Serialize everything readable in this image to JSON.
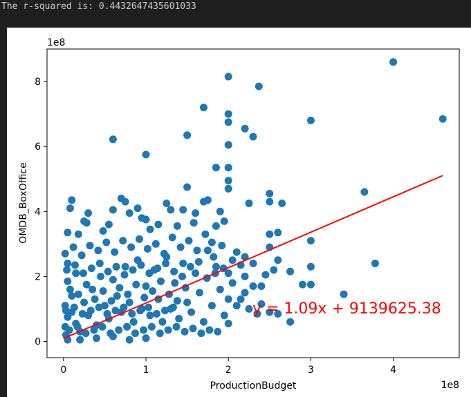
{
  "console": {
    "output_text": "The r-squared is: 0.4432647435601033"
  },
  "chart_data": {
    "type": "scatter",
    "title": "",
    "xlabel": "ProductionBudget",
    "ylabel": "OMDB_BoxOffice",
    "x_offset_label": "1e8",
    "y_offset_label": "1e8",
    "xlim": [
      -0.2,
      4.8
    ],
    "ylim": [
      -0.5,
      9.0
    ],
    "units_note": "values in units of 1e8",
    "x_ticks": [
      0,
      1,
      2,
      3,
      4
    ],
    "x_tick_labels": [
      "0",
      "1",
      "2",
      "3",
      "4"
    ],
    "y_ticks": [
      0,
      2,
      4,
      6,
      8
    ],
    "y_tick_labels": [
      "0",
      "2",
      "4",
      "6",
      "8"
    ],
    "grid": false,
    "point_color": "#1f77b4",
    "line_color": "#ff0000",
    "regression": {
      "equation_text": "y = 1.09x + 9139625.38",
      "slope": 1.09,
      "intercept": 0.0914,
      "x_range": [
        0.0,
        4.6
      ]
    },
    "points": [
      [
        4.0,
        8.6
      ],
      [
        2.0,
        8.15
      ],
      [
        2.37,
        7.85
      ],
      [
        1.7,
        7.2
      ],
      [
        2.0,
        7.0
      ],
      [
        2.0,
        6.75
      ],
      [
        2.2,
        6.55
      ],
      [
        2.3,
        6.3
      ],
      [
        1.5,
        6.35
      ],
      [
        2.0,
        6.05
      ],
      [
        0.6,
        6.22
      ],
      [
        3.0,
        6.8
      ],
      [
        4.6,
        6.85
      ],
      [
        1.0,
        5.75
      ],
      [
        1.85,
        5.35
      ],
      [
        2.0,
        5.35
      ],
      [
        2.0,
        4.95
      ],
      [
        1.5,
        4.75
      ],
      [
        2.0,
        4.7
      ],
      [
        2.5,
        4.55
      ],
      [
        2.5,
        4.3
      ],
      [
        2.65,
        4.25
      ],
      [
        2.25,
        4.25
      ],
      [
        3.65,
        4.6
      ],
      [
        3.78,
        2.4
      ],
      [
        3.4,
        1.45
      ],
      [
        2.75,
        0.6
      ],
      [
        3.0,
        3.1
      ],
      [
        3.0,
        2.3
      ],
      [
        3.0,
        1.75
      ],
      [
        2.9,
        1.75
      ],
      [
        2.75,
        2.15
      ],
      [
        2.6,
        2.5
      ],
      [
        2.5,
        2.9
      ],
      [
        2.5,
        3.3
      ],
      [
        2.45,
        2.05
      ],
      [
        2.4,
        1.7
      ],
      [
        2.6,
        3.35
      ],
      [
        2.55,
        2.2
      ],
      [
        2.3,
        1.7
      ],
      [
        2.2,
        2.0
      ],
      [
        2.2,
        1.5
      ],
      [
        2.15,
        1.3
      ],
      [
        2.25,
        1.0
      ],
      [
        2.35,
        0.85
      ],
      [
        2.4,
        1.15
      ],
      [
        2.5,
        0.9
      ],
      [
        2.6,
        0.85
      ],
      [
        0.1,
        4.35
      ],
      [
        0.08,
        4.1
      ],
      [
        0.7,
        4.4
      ],
      [
        0.75,
        4.3
      ],
      [
        0.8,
        3.95
      ],
      [
        0.6,
        4.05
      ],
      [
        0.55,
        3.6
      ],
      [
        0.9,
        4.1
      ],
      [
        0.95,
        3.8
      ],
      [
        1.0,
        3.75
      ],
      [
        1.25,
        4.25
      ],
      [
        1.3,
        4.05
      ],
      [
        1.45,
        4.05
      ],
      [
        1.6,
        3.95
      ],
      [
        1.7,
        4.3
      ],
      [
        1.75,
        4.35
      ],
      [
        1.9,
        4.0
      ],
      [
        1.95,
        3.7
      ],
      [
        1.85,
        3.55
      ],
      [
        1.8,
        3.05
      ],
      [
        1.15,
        3.6
      ],
      [
        0.25,
        3.7
      ],
      [
        0.28,
        3.65
      ],
      [
        0.18,
        3.3
      ],
      [
        0.05,
        3.35
      ],
      [
        0.02,
        2.7
      ],
      [
        0.05,
        2.4
      ],
      [
        0.15,
        2.1
      ],
      [
        0.05,
        1.85
      ],
      [
        0.1,
        1.4
      ],
      [
        0.02,
        1.1
      ],
      [
        0.05,
        0.75
      ],
      [
        0.02,
        0.45
      ],
      [
        0.03,
        0.2
      ],
      [
        0.05,
        0.05
      ],
      [
        0.1,
        0.9
      ],
      [
        0.15,
        0.55
      ],
      [
        0.2,
        0.3
      ],
      [
        0.25,
        1.2
      ],
      [
        0.3,
        0.8
      ],
      [
        0.35,
        1.6
      ],
      [
        0.4,
        0.5
      ],
      [
        0.45,
        2.0
      ],
      [
        0.5,
        1.1
      ],
      [
        0.55,
        0.7
      ],
      [
        0.6,
        1.9
      ],
      [
        0.65,
        1.4
      ],
      [
        0.7,
        0.9
      ],
      [
        0.75,
        2.3
      ],
      [
        0.8,
        1.2
      ],
      [
        0.85,
        0.6
      ],
      [
        0.9,
        2.5
      ],
      [
        0.95,
        1.0
      ],
      [
        1.0,
        1.7
      ],
      [
        1.05,
        0.8
      ],
      [
        1.1,
        2.2
      ],
      [
        1.15,
        1.3
      ],
      [
        1.2,
        0.6
      ],
      [
        1.25,
        2.6
      ],
      [
        1.3,
        1.0
      ],
      [
        1.35,
        1.8
      ],
      [
        1.4,
        0.7
      ],
      [
        1.45,
        2.4
      ],
      [
        1.5,
        1.2
      ],
      [
        1.55,
        0.9
      ],
      [
        1.6,
        2.1
      ],
      [
        1.65,
        1.5
      ],
      [
        1.7,
        0.6
      ],
      [
        1.75,
        2.8
      ],
      [
        1.8,
        1.1
      ],
      [
        1.85,
        2.3
      ],
      [
        1.9,
        1.6
      ],
      [
        1.95,
        0.8
      ],
      [
        2.0,
        2.1
      ],
      [
        2.0,
        1.3
      ],
      [
        2.0,
        0.55
      ],
      [
        2.05,
        1.8
      ],
      [
        2.1,
        1.1
      ],
      [
        0.12,
        2.9
      ],
      [
        0.22,
        2.65
      ],
      [
        0.32,
        2.95
      ],
      [
        0.42,
        2.8
      ],
      [
        0.52,
        3.05
      ],
      [
        0.62,
        2.75
      ],
      [
        0.72,
        3.1
      ],
      [
        0.82,
        2.9
      ],
      [
        0.92,
        3.15
      ],
      [
        1.02,
        2.85
      ],
      [
        1.12,
        3.0
      ],
      [
        1.22,
        2.7
      ],
      [
        1.32,
        3.2
      ],
      [
        1.42,
        2.9
      ],
      [
        1.52,
        3.1
      ],
      [
        1.62,
        2.8
      ],
      [
        1.72,
        3.3
      ],
      [
        1.82,
        2.6
      ],
      [
        1.92,
        2.95
      ],
      [
        0.08,
        1.6
      ],
      [
        0.18,
        1.45
      ],
      [
        0.28,
        1.75
      ],
      [
        0.38,
        1.3
      ],
      [
        0.48,
        1.55
      ],
      [
        0.58,
        1.25
      ],
      [
        0.68,
        1.65
      ],
      [
        0.78,
        1.45
      ],
      [
        0.88,
        1.75
      ],
      [
        0.98,
        1.35
      ],
      [
        1.08,
        1.55
      ],
      [
        1.18,
        1.85
      ],
      [
        1.28,
        1.45
      ],
      [
        1.38,
        1.25
      ],
      [
        1.48,
        1.65
      ],
      [
        0.03,
        0.95
      ],
      [
        0.13,
        1.05
      ],
      [
        0.23,
        0.85
      ],
      [
        0.33,
        0.95
      ],
      [
        0.43,
        1.05
      ],
      [
        0.53,
        0.85
      ],
      [
        0.63,
        0.95
      ],
      [
        0.73,
        1.05
      ],
      [
        0.83,
        0.85
      ],
      [
        0.93,
        0.95
      ],
      [
        1.03,
        1.05
      ],
      [
        1.13,
        0.85
      ],
      [
        1.23,
        0.95
      ],
      [
        1.33,
        1.05
      ],
      [
        0.07,
        0.35
      ],
      [
        0.17,
        0.45
      ],
      [
        0.27,
        0.25
      ],
      [
        0.37,
        0.35
      ],
      [
        0.47,
        0.45
      ],
      [
        0.57,
        0.25
      ],
      [
        0.67,
        0.35
      ],
      [
        0.77,
        0.45
      ],
      [
        0.87,
        0.25
      ],
      [
        0.97,
        0.35
      ],
      [
        1.07,
        0.45
      ],
      [
        1.17,
        0.25
      ],
      [
        1.27,
        0.35
      ],
      [
        1.37,
        0.45
      ],
      [
        1.47,
        0.3
      ],
      [
        1.57,
        0.4
      ],
      [
        1.67,
        0.25
      ],
      [
        1.77,
        0.35
      ],
      [
        1.87,
        0.3
      ],
      [
        0.04,
        2.2
      ],
      [
        0.14,
        2.35
      ],
      [
        0.24,
        2.1
      ],
      [
        0.34,
        2.25
      ],
      [
        0.44,
        2.4
      ],
      [
        0.54,
        2.15
      ],
      [
        0.64,
        2.3
      ],
      [
        0.74,
        2.05
      ],
      [
        0.84,
        2.2
      ],
      [
        0.94,
        2.35
      ],
      [
        1.04,
        2.1
      ],
      [
        1.14,
        2.25
      ],
      [
        1.24,
        2.4
      ],
      [
        1.34,
        2.15
      ],
      [
        1.44,
        2.0
      ],
      [
        1.54,
        2.3
      ],
      [
        1.64,
        2.45
      ],
      [
        1.74,
        1.95
      ],
      [
        1.84,
        2.1
      ],
      [
        1.94,
        2.25
      ],
      [
        0.2,
        0.05
      ],
      [
        0.4,
        0.1
      ],
      [
        0.6,
        0.15
      ],
      [
        0.8,
        0.05
      ],
      [
        1.0,
        0.1
      ],
      [
        0.3,
        3.95
      ],
      [
        0.48,
        3.4
      ],
      [
        1.05,
        3.45
      ],
      [
        1.38,
        3.55
      ],
      [
        1.58,
        3.65
      ],
      [
        2.1,
        2.75
      ],
      [
        2.2,
        2.6
      ],
      [
        2.3,
        2.4
      ],
      [
        2.15,
        2.35
      ],
      [
        2.05,
        2.5
      ]
    ]
  }
}
